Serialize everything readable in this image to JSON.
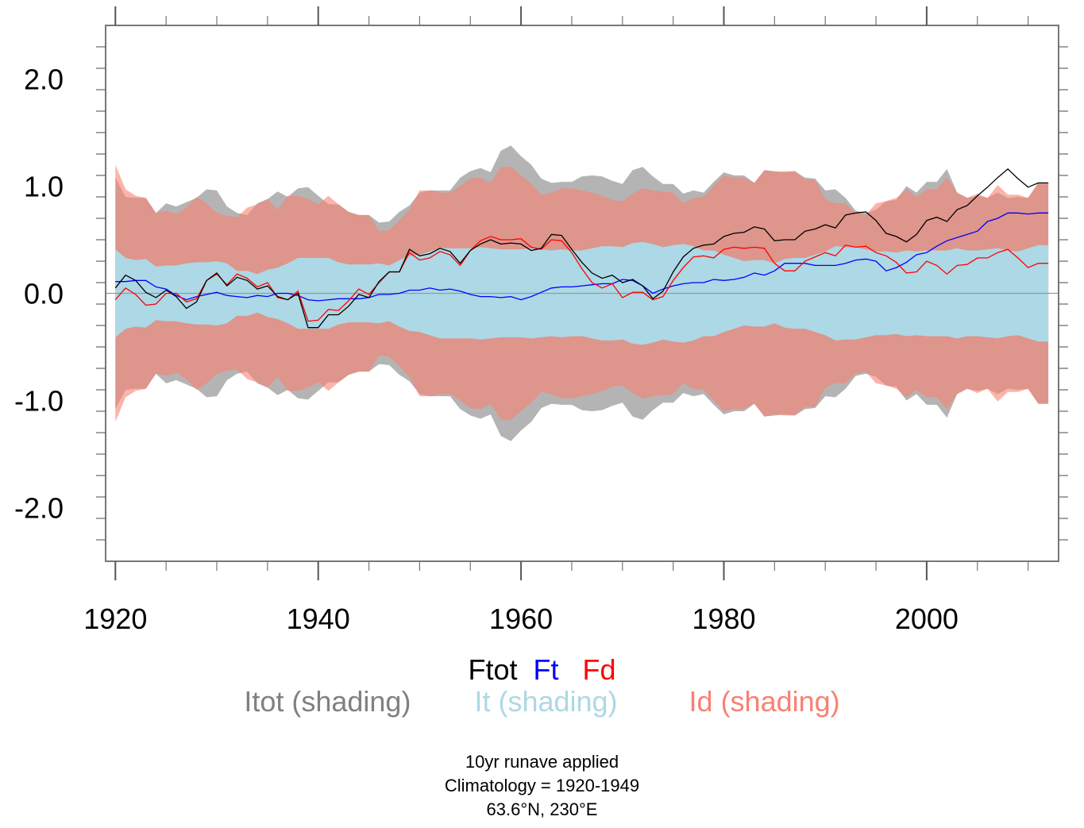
{
  "chart_data": {
    "type": "line",
    "title": "",
    "xlabel": "",
    "ylabel": "",
    "xlim": [
      1919,
      2013
    ],
    "ylim": [
      -2.5,
      2.5
    ],
    "grid": false,
    "x_ticks": [
      1920,
      1940,
      1960,
      1980,
      2000
    ],
    "x_tick_labels": [
      "1920",
      "1940",
      "1960",
      "1980",
      "2000"
    ],
    "y_ticks": [
      -2.0,
      -1.0,
      0.0,
      1.0,
      2.0
    ],
    "y_tick_labels": [
      "-2.0",
      "-1.0",
      "0.0",
      "1.0",
      "2.0"
    ],
    "x_minor_step": 5,
    "y_minor_step": 0.2,
    "reference_line": 0,
    "x_start": 1920,
    "x_end": 2012,
    "series": [
      {
        "name": "Ftot",
        "color": "#000000",
        "values": [
          0.05,
          0.17,
          0.12,
          0.01,
          -0.04,
          0.03,
          -0.03,
          -0.14,
          -0.08,
          0.12,
          0.19,
          0.07,
          0.15,
          0.12,
          0.04,
          0.07,
          -0.03,
          -0.06,
          0.0,
          -0.32,
          -0.32,
          -0.2,
          -0.2,
          -0.12,
          -0.01,
          -0.04,
          0.11,
          0.2,
          0.2,
          0.41,
          0.35,
          0.37,
          0.42,
          0.39,
          0.28,
          0.4,
          0.46,
          0.5,
          0.46,
          0.47,
          0.46,
          0.4,
          0.42,
          0.55,
          0.54,
          0.41,
          0.29,
          0.19,
          0.14,
          0.17,
          0.1,
          0.13,
          0.07,
          -0.05,
          0.02,
          0.2,
          0.34,
          0.42,
          0.45,
          0.46,
          0.53,
          0.56,
          0.57,
          0.62,
          0.6,
          0.49,
          0.5,
          0.5,
          0.58,
          0.6,
          0.64,
          0.61,
          0.73,
          0.75,
          0.76,
          0.68,
          0.56,
          0.53,
          0.48,
          0.55,
          0.68,
          0.71,
          0.67,
          0.78,
          0.82,
          0.91,
          0.99,
          1.08,
          1.16,
          1.07,
          0.99,
          1.03,
          1.03
        ]
      },
      {
        "name": "Ft",
        "color": "#0000ff",
        "values": [
          0.11,
          0.11,
          0.12,
          0.12,
          0.06,
          0.04,
          -0.02,
          -0.06,
          -0.03,
          -0.01,
          0.01,
          -0.02,
          -0.03,
          -0.04,
          -0.02,
          -0.03,
          0.0,
          0.0,
          -0.02,
          -0.06,
          -0.07,
          -0.06,
          -0.05,
          -0.05,
          -0.05,
          -0.04,
          -0.01,
          -0.01,
          0.0,
          0.03,
          0.03,
          0.05,
          0.03,
          0.04,
          0.02,
          -0.01,
          -0.03,
          -0.03,
          -0.04,
          -0.03,
          -0.06,
          -0.03,
          0.01,
          0.05,
          0.06,
          0.06,
          0.07,
          0.08,
          0.09,
          0.09,
          0.13,
          0.12,
          0.07,
          0.0,
          0.04,
          0.07,
          0.09,
          0.1,
          0.1,
          0.13,
          0.12,
          0.13,
          0.15,
          0.19,
          0.17,
          0.21,
          0.28,
          0.28,
          0.28,
          0.26,
          0.26,
          0.26,
          0.28,
          0.31,
          0.32,
          0.3,
          0.21,
          0.24,
          0.29,
          0.36,
          0.38,
          0.44,
          0.49,
          0.52,
          0.55,
          0.58,
          0.67,
          0.7,
          0.75,
          0.75,
          0.74,
          0.75,
          0.75
        ]
      },
      {
        "name": "Fd",
        "color": "#ff0000",
        "values": [
          -0.06,
          0.05,
          -0.01,
          -0.11,
          -0.1,
          0.0,
          0.0,
          -0.08,
          -0.05,
          0.12,
          0.18,
          0.08,
          0.18,
          0.14,
          0.06,
          0.1,
          -0.04,
          -0.06,
          0.02,
          -0.26,
          -0.25,
          -0.15,
          -0.16,
          -0.07,
          0.04,
          -0.01,
          0.1,
          0.2,
          0.2,
          0.38,
          0.31,
          0.33,
          0.39,
          0.36,
          0.26,
          0.4,
          0.49,
          0.53,
          0.5,
          0.5,
          0.51,
          0.43,
          0.41,
          0.5,
          0.49,
          0.38,
          0.23,
          0.1,
          0.05,
          0.09,
          -0.04,
          0.01,
          0.01,
          -0.06,
          -0.03,
          0.12,
          0.24,
          0.34,
          0.35,
          0.33,
          0.41,
          0.43,
          0.42,
          0.43,
          0.42,
          0.28,
          0.21,
          0.21,
          0.3,
          0.34,
          0.38,
          0.35,
          0.45,
          0.43,
          0.44,
          0.38,
          0.35,
          0.29,
          0.19,
          0.2,
          0.3,
          0.26,
          0.18,
          0.26,
          0.27,
          0.33,
          0.33,
          0.38,
          0.41,
          0.33,
          0.24,
          0.28,
          0.28
        ]
      }
    ],
    "shading": [
      {
        "name": "Itot",
        "color": "#b4b4b4",
        "symmetric_about_zero": true,
        "upper": [
          1.08,
          0.9,
          0.89,
          0.89,
          0.75,
          0.84,
          0.81,
          0.85,
          0.89,
          0.97,
          0.96,
          0.81,
          0.75,
          0.73,
          0.84,
          0.88,
          0.95,
          0.9,
          0.98,
          0.99,
          0.91,
          0.83,
          0.83,
          0.76,
          0.73,
          0.73,
          0.66,
          0.67,
          0.76,
          0.82,
          0.94,
          0.96,
          0.96,
          0.96,
          1.08,
          1.14,
          1.17,
          1.13,
          1.33,
          1.38,
          1.28,
          1.2,
          1.07,
          1.03,
          1.04,
          1.04,
          1.09,
          1.1,
          1.09,
          1.05,
          1.02,
          1.15,
          1.18,
          1.09,
          1.02,
          1.02,
          0.93,
          0.96,
          0.94,
          1.04,
          1.13,
          1.1,
          1.1,
          1.03,
          1.15,
          1.14,
          1.13,
          1.14,
          1.08,
          1.07,
          0.96,
          0.97,
          0.89,
          0.77,
          0.75,
          0.78,
          0.86,
          0.87,
          1.0,
          0.94,
          1.04,
          1.04,
          1.16,
          0.94,
          0.89,
          0.91,
          0.89,
          0.94,
          0.89,
          0.9,
          0.89,
          1.03,
          1.03
        ]
      },
      {
        "name": "Id",
        "color": "#fa8072",
        "symmetric_about_zero": true,
        "upper": [
          1.2,
          0.97,
          0.91,
          0.89,
          0.75,
          0.77,
          0.74,
          0.8,
          0.9,
          0.84,
          0.75,
          0.72,
          0.71,
          0.8,
          0.83,
          0.88,
          0.78,
          0.91,
          0.91,
          0.88,
          0.83,
          0.91,
          0.83,
          0.76,
          0.73,
          0.73,
          0.58,
          0.59,
          0.68,
          0.78,
          0.96,
          0.96,
          0.94,
          0.94,
          1.0,
          1.07,
          1.08,
          1.03,
          1.18,
          1.18,
          1.1,
          1.02,
          0.92,
          0.94,
          0.98,
          0.98,
          0.96,
          0.94,
          0.91,
          0.87,
          0.86,
          0.93,
          0.98,
          0.96,
          0.95,
          0.94,
          0.84,
          0.89,
          0.9,
          1.0,
          1.1,
          1.08,
          1.08,
          1.03,
          1.15,
          1.13,
          1.14,
          1.14,
          1.06,
          1.06,
          0.88,
          0.84,
          0.84,
          0.75,
          0.73,
          0.84,
          0.86,
          0.89,
          0.97,
          0.9,
          0.97,
          0.97,
          1.08,
          0.94,
          0.89,
          0.93,
          0.89,
          1.01,
          0.92,
          0.92,
          0.89,
          1.03,
          1.03
        ]
      },
      {
        "name": "It",
        "color": "#add8e6",
        "symmetric_about_zero": true,
        "upper": [
          0.41,
          0.33,
          0.31,
          0.32,
          0.25,
          0.26,
          0.26,
          0.28,
          0.29,
          0.29,
          0.3,
          0.28,
          0.21,
          0.21,
          0.18,
          0.22,
          0.24,
          0.28,
          0.33,
          0.33,
          0.33,
          0.33,
          0.29,
          0.27,
          0.27,
          0.27,
          0.28,
          0.26,
          0.31,
          0.35,
          0.36,
          0.39,
          0.42,
          0.42,
          0.42,
          0.42,
          0.43,
          0.42,
          0.41,
          0.41,
          0.41,
          0.42,
          0.41,
          0.4,
          0.41,
          0.4,
          0.4,
          0.42,
          0.44,
          0.44,
          0.43,
          0.47,
          0.48,
          0.46,
          0.43,
          0.45,
          0.46,
          0.44,
          0.4,
          0.4,
          0.36,
          0.33,
          0.3,
          0.31,
          0.31,
          0.28,
          0.32,
          0.33,
          0.33,
          0.36,
          0.39,
          0.44,
          0.43,
          0.43,
          0.41,
          0.39,
          0.39,
          0.38,
          0.4,
          0.39,
          0.4,
          0.4,
          0.4,
          0.42,
          0.4,
          0.4,
          0.41,
          0.42,
          0.4,
          0.39,
          0.42,
          0.45,
          0.45
        ]
      }
    ],
    "legend": {
      "lines": [
        {
          "label": "Ftot",
          "color": "#000000"
        },
        {
          "label": "Ft",
          "color": "#0000ff"
        },
        {
          "label": "Fd",
          "color": "#ff0000"
        }
      ],
      "shading": [
        {
          "label": "Itot (shading)",
          "color": "#808080"
        },
        {
          "label": "It (shading)",
          "color": "#add8e6"
        },
        {
          "label": "Id (shading)",
          "color": "#fa8072"
        }
      ],
      "placement": "bottom-center"
    },
    "annotations": [
      "10yr runave applied",
      "Climatology = 1920-1949",
      "63.6°N, 230°E"
    ]
  }
}
